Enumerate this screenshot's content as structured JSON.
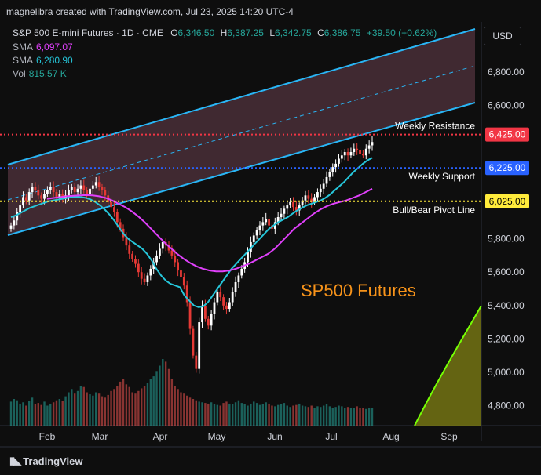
{
  "header": {
    "credit": "magnelibra created with TradingView.com, Jul 23, 2025 14:20 UTC-4"
  },
  "symbol": {
    "name": "S&P 500 E-mini Futures · 1D · CME",
    "open_label": "O",
    "open": "6,346.50",
    "high_label": "H",
    "high": "6,387.25",
    "low_label": "L",
    "low": "6,342.75",
    "close_label": "C",
    "close": "6,386.75",
    "change": "+39.50 (+0.62%)"
  },
  "indicators": [
    {
      "label": "SMA",
      "value": "6,097.07",
      "color": "#e040fb"
    },
    {
      "label": "SMA",
      "value": "6,280.90",
      "color": "#26c6da"
    },
    {
      "label": "Vol",
      "value": "815.57 K",
      "color": "#26a69a"
    }
  ],
  "currency_button": "USD",
  "annotation": "SP500 Futures",
  "branding": "TradingView",
  "colors": {
    "up": "#ffffff",
    "down": "#e53935",
    "channel": "#29b6f6",
    "sma_fast": "#26c6da",
    "sma_slow": "#e040fb",
    "resistance": "#f23645",
    "support": "#2962ff",
    "pivot": "#ffeb3b",
    "orange": "#f7931a",
    "curve": "#76ff03"
  },
  "chart_data": {
    "type": "candlestick",
    "xlabels": [
      "Feb",
      "Mar",
      "Apr",
      "May",
      "Jun",
      "Jul",
      "Aug",
      "Sep"
    ],
    "yticks": [
      {
        "value": 4800,
        "label": "4,800.00"
      },
      {
        "value": 5000,
        "label": "5,000.00"
      },
      {
        "value": 5200,
        "label": "5,200.00"
      },
      {
        "value": 5400,
        "label": "5,400.00"
      },
      {
        "value": 5600,
        "label": "5,600.00"
      },
      {
        "value": 5800,
        "label": "5,800.00"
      },
      {
        "value": 6600,
        "label": "6,600.00"
      },
      {
        "value": 6800,
        "label": "6,800.00"
      }
    ],
    "ylim": [
      4680,
      7100
    ],
    "levels": [
      {
        "name": "Weekly Resistance",
        "value": 6425,
        "label": "6,425.00",
        "color": "#f23645"
      },
      {
        "name": "Weekly Support",
        "value": 6225,
        "label": "6,225.00",
        "color": "#2962ff"
      },
      {
        "name": "Bull/Bear Pivot Line",
        "value": 6025,
        "label": "6,025.00",
        "color": "#ffeb3b"
      }
    ],
    "closes": [
      5880,
      5910,
      5960,
      6000,
      6050,
      6030,
      6080,
      6110,
      6090,
      6060,
      6040,
      6070,
      6090,
      6110,
      6080,
      6050,
      6070,
      6040,
      6060,
      6090,
      6110,
      6080,
      6100,
      6120,
      6090,
      6070,
      6100,
      6120,
      6140,
      6110,
      6090,
      6060,
      6020,
      5990,
      5960,
      5900,
      5860,
      5810,
      5760,
      5710,
      5680,
      5650,
      5600,
      5560,
      5540,
      5580,
      5620,
      5660,
      5700,
      5740,
      5780,
      5760,
      5730,
      5700,
      5660,
      5610,
      5570,
      5520,
      5420,
      5260,
      5100,
      5020,
      5300,
      5400,
      5320,
      5280,
      5350,
      5420,
      5480,
      5450,
      5400,
      5380,
      5420,
      5480,
      5540,
      5580,
      5620,
      5660,
      5720,
      5780,
      5820,
      5850,
      5880,
      5900,
      5920,
      5880,
      5860,
      5900,
      5930,
      5950,
      5980,
      6000,
      6020,
      5990,
      5970,
      6000,
      6030,
      6060,
      6040,
      6020,
      6050,
      6080,
      6100,
      6130,
      6170,
      6200,
      6230,
      6250,
      6280,
      6300,
      6320,
      6300,
      6320,
      6340,
      6330,
      6310,
      6300,
      6340,
      6360,
      6380
    ],
    "sma_fast": [
      5930,
      5940,
      5955,
      5970,
      5985,
      5995,
      6005,
      6015,
      6025,
      6030,
      6035,
      6040,
      6045,
      6050,
      6052,
      6050,
      6045,
      6035,
      6020,
      6000,
      5975,
      5945,
      5910,
      5870,
      5830,
      5800,
      5780,
      5760,
      5740,
      5710,
      5670,
      5620,
      5580,
      5550,
      5530,
      5520,
      5510,
      5460,
      5430,
      5400,
      5390,
      5395,
      5420,
      5460,
      5500,
      5540,
      5580,
      5620,
      5650,
      5680,
      5710,
      5740,
      5770,
      5800,
      5830,
      5860,
      5880,
      5900,
      5915,
      5930,
      5950,
      5970,
      5985,
      6000,
      6010,
      6020,
      6030,
      6045,
      6065,
      6090,
      6115,
      6140,
      6170,
      6200,
      6225,
      6250,
      6270,
      6285
    ],
    "sma_slow": [
      6040,
      6045,
      6050,
      6055,
      6058,
      6060,
      6062,
      6060,
      6055,
      6045,
      6030,
      6010,
      5990,
      5965,
      5935,
      5900,
      5860,
      5820,
      5780,
      5745,
      5710,
      5680,
      5655,
      5635,
      5620,
      5610,
      5605,
      5605,
      5610,
      5620,
      5635,
      5650,
      5670,
      5690,
      5710,
      5740,
      5780,
      5820,
      5860,
      5890,
      5920,
      5950,
      5975,
      5995,
      6010,
      6020,
      6030,
      6045,
      6060,
      6080,
      6100
    ],
    "volume": [
      0.36,
      0.4,
      0.38,
      0.33,
      0.35,
      0.3,
      0.37,
      0.42,
      0.32,
      0.34,
      0.31,
      0.36,
      0.3,
      0.33,
      0.35,
      0.38,
      0.4,
      0.37,
      0.44,
      0.5,
      0.55,
      0.48,
      0.52,
      0.6,
      0.58,
      0.5,
      0.47,
      0.45,
      0.5,
      0.48,
      0.44,
      0.42,
      0.46,
      0.52,
      0.55,
      0.6,
      0.66,
      0.7,
      0.62,
      0.58,
      0.5,
      0.48,
      0.52,
      0.56,
      0.6,
      0.64,
      0.7,
      0.74,
      0.82,
      0.9,
      1.0,
      0.96,
      0.85,
      0.7,
      0.6,
      0.55,
      0.5,
      0.48,
      0.45,
      0.42,
      0.4,
      0.38,
      0.36,
      0.35,
      0.34,
      0.33,
      0.35,
      0.32,
      0.31,
      0.3,
      0.34,
      0.36,
      0.33,
      0.32,
      0.35,
      0.38,
      0.34,
      0.32,
      0.3,
      0.33,
      0.36,
      0.34,
      0.31,
      0.32,
      0.35,
      0.33,
      0.3,
      0.29,
      0.31,
      0.32,
      0.34,
      0.3,
      0.28,
      0.3,
      0.31,
      0.33,
      0.3,
      0.29,
      0.28,
      0.3,
      0.27,
      0.29,
      0.28,
      0.3,
      0.32,
      0.29,
      0.27,
      0.28,
      0.3,
      0.29,
      0.27,
      0.28,
      0.26,
      0.27,
      0.29,
      0.27,
      0.26,
      0.25,
      0.27,
      0.26
    ]
  }
}
